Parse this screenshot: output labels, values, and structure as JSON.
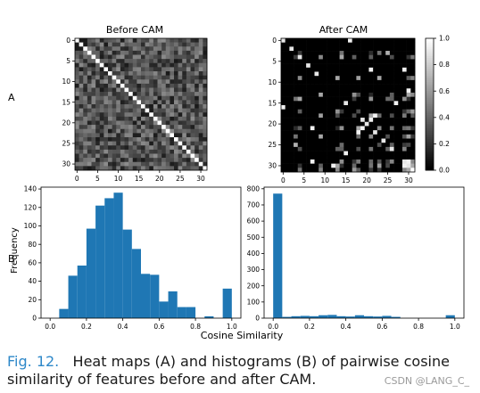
{
  "panel_labels": {
    "a": "A",
    "b": "B"
  },
  "caption": {
    "figure_label": "Fig. 12.",
    "text": "Heat maps (A) and histograms (B) of pairwise cosine similarity of features before and after CAM."
  },
  "watermark": "CSDN @LANG_C_",
  "colors": {
    "bar": "#1f77b4",
    "axis": "#000000",
    "caption_label": "#2e88c9"
  },
  "chart_data": [
    {
      "type": "heatmap",
      "title": "Before CAM",
      "size": 32,
      "ticks": [
        0,
        5,
        10,
        15,
        20,
        25,
        30
      ],
      "colormap": "gray",
      "vmin": 0.0,
      "vmax": 1.0,
      "diagonal": 1.0,
      "off_diagonal_range": [
        0.1,
        0.55
      ]
    },
    {
      "type": "heatmap",
      "title": "After CAM",
      "size": 32,
      "ticks": [
        0,
        5,
        10,
        15,
        20,
        25,
        30
      ],
      "colormap": "gray",
      "vmin": 0.0,
      "vmax": 1.0,
      "colorbar_ticks": [
        "0.0",
        "0.2",
        "0.4",
        "0.6",
        "0.8",
        "1.0"
      ],
      "note": "mostly 0.0, sparse bright cells"
    },
    {
      "type": "bar",
      "subtype": "histogram",
      "x_range": [
        0.0,
        1.0
      ],
      "xticks": [
        "0.0",
        "0.2",
        "0.4",
        "0.6",
        "0.8",
        "1.0"
      ],
      "yticks": [
        0,
        20,
        40,
        60,
        80,
        100,
        120,
        140
      ],
      "ylim": [
        0,
        142
      ],
      "ylabel": "Frequency",
      "bins": [
        {
          "x0": 0.05,
          "x1": 0.1,
          "count": 10
        },
        {
          "x0": 0.1,
          "x1": 0.15,
          "count": 46
        },
        {
          "x0": 0.15,
          "x1": 0.2,
          "count": 57
        },
        {
          "x0": 0.2,
          "x1": 0.25,
          "count": 97
        },
        {
          "x0": 0.25,
          "x1": 0.3,
          "count": 122
        },
        {
          "x0": 0.3,
          "x1": 0.35,
          "count": 130
        },
        {
          "x0": 0.35,
          "x1": 0.4,
          "count": 136
        },
        {
          "x0": 0.4,
          "x1": 0.45,
          "count": 96
        },
        {
          "x0": 0.45,
          "x1": 0.5,
          "count": 75
        },
        {
          "x0": 0.5,
          "x1": 0.55,
          "count": 48
        },
        {
          "x0": 0.55,
          "x1": 0.6,
          "count": 47
        },
        {
          "x0": 0.6,
          "x1": 0.65,
          "count": 18
        },
        {
          "x0": 0.65,
          "x1": 0.7,
          "count": 29
        },
        {
          "x0": 0.7,
          "x1": 0.75,
          "count": 12
        },
        {
          "x0": 0.75,
          "x1": 0.8,
          "count": 12
        },
        {
          "x0": 0.85,
          "x1": 0.9,
          "count": 2
        },
        {
          "x0": 0.95,
          "x1": 1.0,
          "count": 32
        }
      ]
    },
    {
      "type": "bar",
      "subtype": "histogram",
      "x_range": [
        0.0,
        1.0
      ],
      "xticks": [
        "0.0",
        "0.2",
        "0.4",
        "0.6",
        "0.8",
        "1.0"
      ],
      "yticks": [
        0,
        100,
        200,
        300,
        400,
        500,
        600,
        700,
        800
      ],
      "ylim": [
        0,
        810
      ],
      "xlabel": "Cosine Similarity",
      "bins": [
        {
          "x0": 0.0,
          "x1": 0.05,
          "count": 770
        },
        {
          "x0": 0.05,
          "x1": 0.1,
          "count": 8
        },
        {
          "x0": 0.1,
          "x1": 0.15,
          "count": 12
        },
        {
          "x0": 0.15,
          "x1": 0.2,
          "count": 14
        },
        {
          "x0": 0.2,
          "x1": 0.25,
          "count": 12
        },
        {
          "x0": 0.25,
          "x1": 0.3,
          "count": 18
        },
        {
          "x0": 0.3,
          "x1": 0.35,
          "count": 20
        },
        {
          "x0": 0.35,
          "x1": 0.4,
          "count": 12
        },
        {
          "x0": 0.4,
          "x1": 0.45,
          "count": 10
        },
        {
          "x0": 0.45,
          "x1": 0.5,
          "count": 18
        },
        {
          "x0": 0.5,
          "x1": 0.55,
          "count": 12
        },
        {
          "x0": 0.55,
          "x1": 0.6,
          "count": 10
        },
        {
          "x0": 0.6,
          "x1": 0.65,
          "count": 14
        },
        {
          "x0": 0.65,
          "x1": 0.7,
          "count": 8
        },
        {
          "x0": 0.95,
          "x1": 1.0,
          "count": 18
        }
      ]
    }
  ]
}
